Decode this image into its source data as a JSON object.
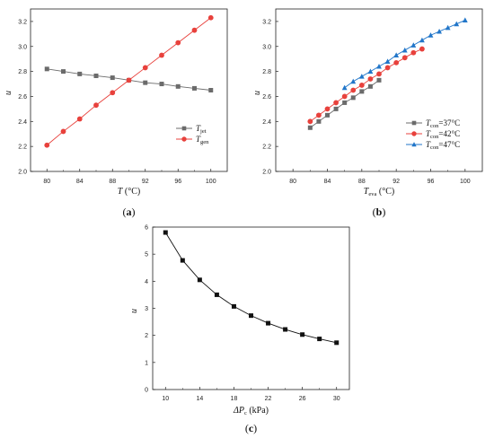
{
  "chart_data": [
    {
      "panel_label": "a",
      "type": "line",
      "xlabel_var": "T",
      "xlabel_sub": "",
      "xlabel_unit": " (°C)",
      "ylabel": "u",
      "xlim": [
        78,
        102
      ],
      "ylim": [
        2.0,
        3.3
      ],
      "xticks": [
        "80",
        "84",
        "88",
        "92",
        "96",
        "100"
      ],
      "yticks": [
        "2.0",
        "2.2",
        "2.4",
        "2.6",
        "2.8",
        "3.0",
        "3.2"
      ],
      "legend_position": "lower-right",
      "series": [
        {
          "legend_var": "T",
          "legend_sub": "jet",
          "color": "#6b6b6b",
          "marker": "square",
          "x": [
            80,
            82,
            84,
            86,
            88,
            90,
            92,
            94,
            96,
            98,
            100
          ],
          "y": [
            2.82,
            2.8,
            2.78,
            2.765,
            2.75,
            2.73,
            2.71,
            2.7,
            2.68,
            2.665,
            2.65
          ]
        },
        {
          "legend_var": "T",
          "legend_sub": "gen",
          "color": "#e8413c",
          "marker": "circle",
          "x": [
            80,
            82,
            84,
            86,
            88,
            90,
            92,
            94,
            96,
            98,
            100
          ],
          "y": [
            2.21,
            2.32,
            2.42,
            2.53,
            2.63,
            2.73,
            2.83,
            2.93,
            3.03,
            3.13,
            3.23
          ]
        }
      ]
    },
    {
      "panel_label": "b",
      "type": "line",
      "xlabel_var": "T",
      "xlabel_sub": "eva",
      "xlabel_unit": " (°C)",
      "ylabel": "u",
      "xlim": [
        78,
        102
      ],
      "ylim": [
        2.0,
        3.3
      ],
      "xticks": [
        "80",
        "84",
        "88",
        "92",
        "96",
        "100"
      ],
      "yticks": [
        "2.0",
        "2.2",
        "2.4",
        "2.6",
        "2.8",
        "3.0",
        "3.2"
      ],
      "legend_position": "lower-right",
      "series": [
        {
          "legend_var": "T",
          "legend_sub": "con",
          "legend_suffix": "=37°C",
          "color": "#6b6b6b",
          "marker": "square",
          "x": [
            82,
            83,
            84,
            85,
            86,
            87,
            88,
            89,
            90
          ],
          "y": [
            2.35,
            2.4,
            2.45,
            2.5,
            2.55,
            2.59,
            2.64,
            2.68,
            2.73
          ]
        },
        {
          "legend_var": "T",
          "legend_sub": "con",
          "legend_suffix": "=42°C",
          "color": "#e8413c",
          "marker": "circle",
          "x": [
            82,
            83,
            84,
            85,
            86,
            87,
            88,
            89,
            90,
            91,
            92,
            93,
            94,
            95
          ],
          "y": [
            2.4,
            2.45,
            2.5,
            2.55,
            2.6,
            2.65,
            2.69,
            2.74,
            2.78,
            2.83,
            2.87,
            2.91,
            2.95,
            2.98
          ]
        },
        {
          "legend_var": "T",
          "legend_sub": "con",
          "legend_suffix": "=47°C",
          "color": "#2176c9",
          "marker": "triangle",
          "x": [
            86,
            87,
            88,
            89,
            90,
            91,
            92,
            93,
            94,
            95,
            96,
            97,
            98,
            99,
            100
          ],
          "y": [
            2.67,
            2.72,
            2.76,
            2.8,
            2.84,
            2.88,
            2.93,
            2.97,
            3.01,
            3.05,
            3.09,
            3.12,
            3.15,
            3.18,
            3.21
          ]
        }
      ]
    },
    {
      "panel_label": "c",
      "type": "line",
      "xlabel_var": "ΔP",
      "xlabel_sub": "c",
      "xlabel_unit": " (kPa)",
      "ylabel": "u",
      "xlim": [
        8.5,
        31.5
      ],
      "ylim": [
        0,
        6
      ],
      "xticks": [
        "10",
        "14",
        "18",
        "22",
        "26",
        "30"
      ],
      "yticks": [
        "0",
        "1",
        "2",
        "3",
        "4",
        "5",
        "6"
      ],
      "series": [
        {
          "color": "#111111",
          "marker": "square",
          "x": [
            10,
            12,
            14,
            16,
            18,
            20,
            22,
            24,
            26,
            28,
            30
          ],
          "y": [
            5.8,
            4.77,
            4.05,
            3.5,
            3.07,
            2.73,
            2.45,
            2.22,
            2.03,
            1.87,
            1.73
          ]
        }
      ]
    }
  ]
}
